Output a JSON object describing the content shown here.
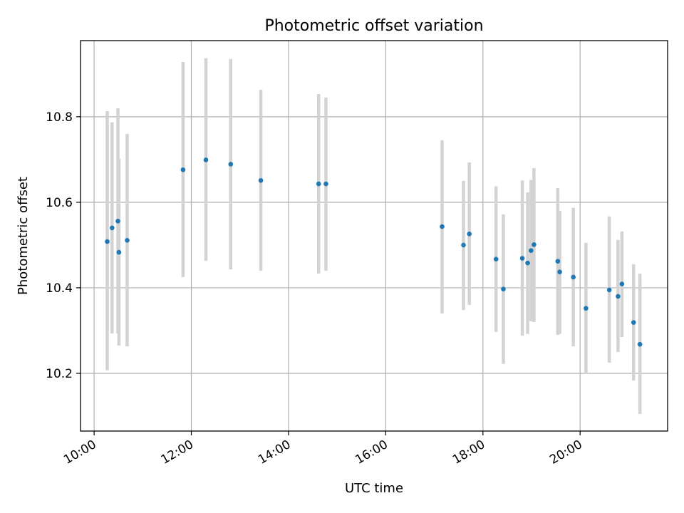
{
  "chart_data": {
    "type": "scatter",
    "title": "Photometric offset variation",
    "xlabel": "UTC time",
    "ylabel": "Photometric offset",
    "x_unit": "hours UTC",
    "xlim": [
      9.72,
      21.8
    ],
    "ylim": [
      10.065,
      10.978
    ],
    "x_ticks": [
      10,
      12,
      14,
      16,
      18,
      20
    ],
    "x_tick_labels": [
      "10:00",
      "12:00",
      "14:00",
      "16:00",
      "18:00",
      "20:00"
    ],
    "y_ticks": [
      10.2,
      10.4,
      10.6,
      10.8
    ],
    "y_tick_labels": [
      "10.2",
      "10.4",
      "10.6",
      "10.8"
    ],
    "grid": true,
    "point_color": "#1f77b4",
    "errorbar_color": "#d3d3d3",
    "points": [
      {
        "x": 10.27,
        "y": 10.508,
        "ylow": 10.207,
        "yhigh": 10.813
      },
      {
        "x": 10.37,
        "y": 10.54,
        "ylow": 10.293,
        "yhigh": 10.787
      },
      {
        "x": 10.49,
        "y": 10.556,
        "ylow": 10.293,
        "yhigh": 10.82
      },
      {
        "x": 10.51,
        "y": 10.483,
        "ylow": 10.265,
        "yhigh": 10.702
      },
      {
        "x": 10.68,
        "y": 10.511,
        "ylow": 10.263,
        "yhigh": 10.76
      },
      {
        "x": 11.83,
        "y": 10.676,
        "ylow": 10.425,
        "yhigh": 10.928
      },
      {
        "x": 12.3,
        "y": 10.699,
        "ylow": 10.463,
        "yhigh": 10.937
      },
      {
        "x": 12.81,
        "y": 10.689,
        "ylow": 10.443,
        "yhigh": 10.935
      },
      {
        "x": 13.43,
        "y": 10.651,
        "ylow": 10.44,
        "yhigh": 10.863
      },
      {
        "x": 14.62,
        "y": 10.643,
        "ylow": 10.433,
        "yhigh": 10.853
      },
      {
        "x": 14.77,
        "y": 10.643,
        "ylow": 10.44,
        "yhigh": 10.845
      },
      {
        "x": 17.16,
        "y": 10.543,
        "ylow": 10.34,
        "yhigh": 10.745
      },
      {
        "x": 17.6,
        "y": 10.5,
        "ylow": 10.348,
        "yhigh": 10.65
      },
      {
        "x": 17.72,
        "y": 10.526,
        "ylow": 10.36,
        "yhigh": 10.693
      },
      {
        "x": 18.27,
        "y": 10.467,
        "ylow": 10.297,
        "yhigh": 10.637
      },
      {
        "x": 18.42,
        "y": 10.397,
        "ylow": 10.222,
        "yhigh": 10.572
      },
      {
        "x": 18.81,
        "y": 10.469,
        "ylow": 10.288,
        "yhigh": 10.651
      },
      {
        "x": 18.92,
        "y": 10.458,
        "ylow": 10.292,
        "yhigh": 10.623
      },
      {
        "x": 18.99,
        "y": 10.487,
        "ylow": 10.322,
        "yhigh": 10.652
      },
      {
        "x": 19.05,
        "y": 10.501,
        "ylow": 10.32,
        "yhigh": 10.68
      },
      {
        "x": 19.54,
        "y": 10.462,
        "ylow": 10.29,
        "yhigh": 10.633
      },
      {
        "x": 19.58,
        "y": 10.437,
        "ylow": 10.292,
        "yhigh": 10.58
      },
      {
        "x": 19.86,
        "y": 10.425,
        "ylow": 10.263,
        "yhigh": 10.587
      },
      {
        "x": 20.12,
        "y": 10.352,
        "ylow": 10.2,
        "yhigh": 10.505
      },
      {
        "x": 20.6,
        "y": 10.395,
        "ylow": 10.225,
        "yhigh": 10.567
      },
      {
        "x": 20.78,
        "y": 10.38,
        "ylow": 10.25,
        "yhigh": 10.512
      },
      {
        "x": 20.86,
        "y": 10.409,
        "ylow": 10.285,
        "yhigh": 10.532
      },
      {
        "x": 21.1,
        "y": 10.319,
        "ylow": 10.183,
        "yhigh": 10.455
      },
      {
        "x": 21.23,
        "y": 10.268,
        "ylow": 10.105,
        "yhigh": 10.433
      }
    ]
  }
}
